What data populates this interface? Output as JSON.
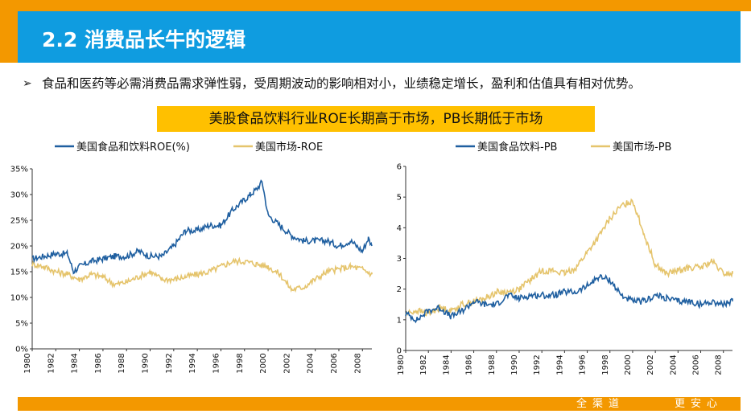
{
  "slide": {
    "title": "2.2 消费品长牛的逻辑",
    "bullet_arrow": "➢",
    "bullet_text": "食品和医药等必需消费品需求弹性弱，受周期波动的影响相对小，业绩稳定增长，盈利和估值具有相对优势。",
    "highlight": "美股食品饮料行业ROE长期高于市场，PB长期低于市场",
    "footer_left": "全渠道",
    "footer_right": "更安心"
  },
  "colors": {
    "series_a": "#1f5fa0",
    "series_b": "#e5c46c",
    "orange": "#f39800",
    "blue": "#0f9ce0"
  },
  "chart_data": [
    {
      "type": "line",
      "title": "",
      "xlabel": "",
      "ylabel": "",
      "x_ticks": [
        "1980",
        "1982",
        "1984",
        "1986",
        "1988",
        "1990",
        "1992",
        "1994",
        "1996",
        "1998",
        "2000",
        "2002",
        "2004",
        "2006",
        "2008"
      ],
      "y_ticks": [
        "35%",
        "30%",
        "25%",
        "20%",
        "15%",
        "10%",
        "5%",
        "0%"
      ],
      "xlim": [
        1980,
        2008.8
      ],
      "ylim": [
        0,
        35
      ],
      "legend_position": "top",
      "series": [
        {
          "name": "美国食品和饮料ROE(%)",
          "x": [
            1980,
            1981,
            1982,
            1983,
            1983.5,
            1984,
            1985,
            1986,
            1987,
            1988,
            1989,
            1990,
            1991,
            1992,
            1993,
            1994,
            1995,
            1996,
            1997,
            1998,
            1998.5,
            1999,
            1999.5,
            2000,
            2001,
            2002,
            2003,
            2004,
            2005,
            2006,
            2007,
            2008,
            2008.5,
            2008.8
          ],
          "y": [
            17.5,
            18,
            18.5,
            18.5,
            15,
            16,
            17,
            17.5,
            18,
            18,
            19,
            18,
            18,
            20,
            23,
            23,
            24,
            24,
            27,
            29,
            30,
            31,
            32.5,
            26,
            24,
            22,
            21,
            21,
            21,
            20,
            21,
            19,
            21.5,
            20
          ]
        },
        {
          "name": "美国市场-ROE",
          "x": [
            1980,
            1981,
            1982,
            1983,
            1984,
            1985,
            1986,
            1987,
            1988,
            1989,
            1990,
            1991,
            1992,
            1993,
            1994,
            1995,
            1996,
            1997,
            1998,
            1999,
            2000,
            2001,
            2002,
            2003,
            2004,
            2005,
            2006,
            2007,
            2008,
            2008.8
          ],
          "y": [
            16.5,
            16,
            15,
            14.5,
            13.5,
            14.5,
            14,
            12.5,
            13,
            14,
            15,
            13.5,
            13.5,
            14,
            14.5,
            15,
            16,
            17,
            17,
            16.5,
            16,
            14.5,
            11.5,
            12,
            13.5,
            15,
            15.5,
            16,
            15.5,
            14.5
          ]
        }
      ]
    },
    {
      "type": "line",
      "title": "",
      "xlabel": "",
      "ylabel": "",
      "x_ticks": [
        "1980",
        "1982",
        "1984",
        "1986",
        "1988",
        "1990",
        "1992",
        "1994",
        "1996",
        "1998",
        "2000",
        "2002",
        "2004",
        "2006",
        "2008"
      ],
      "y_ticks": [
        "6",
        "5",
        "4",
        "3",
        "2",
        "1",
        "0"
      ],
      "xlim": [
        1980,
        2008.8
      ],
      "ylim": [
        0,
        6
      ],
      "legend_position": "top",
      "series": [
        {
          "name": "美国食品饮料-PB",
          "x": [
            1980,
            1981,
            1982,
            1983,
            1984,
            1985,
            1986,
            1987,
            1988,
            1989,
            1990,
            1991,
            1992,
            1993,
            1994,
            1995,
            1996,
            1997,
            1998,
            1999,
            2000,
            2001,
            2002,
            2003,
            2004,
            2005,
            2006,
            2007,
            2008,
            2008.8
          ],
          "y": [
            1.2,
            1.0,
            1.3,
            1.4,
            1.1,
            1.3,
            1.6,
            1.5,
            1.5,
            1.8,
            1.7,
            1.8,
            1.8,
            1.8,
            1.9,
            1.9,
            2.1,
            2.4,
            2.3,
            1.8,
            1.6,
            1.6,
            1.8,
            1.7,
            1.6,
            1.6,
            1.5,
            1.6,
            1.5,
            1.6
          ]
        },
        {
          "name": "美国市场-PB",
          "x": [
            1980,
            1981,
            1982,
            1983,
            1984,
            1985,
            1986,
            1987,
            1988,
            1989,
            1990,
            1991,
            1992,
            1993,
            1994,
            1995,
            1996,
            1997,
            1998,
            1999,
            2000,
            2001,
            2002,
            2003,
            2004,
            2005,
            2006,
            2007,
            2008,
            2008.8
          ],
          "y": [
            1.2,
            1.3,
            1.2,
            1.4,
            1.3,
            1.5,
            1.6,
            1.7,
            1.9,
            1.9,
            2.0,
            2.3,
            2.6,
            2.6,
            2.5,
            2.7,
            3.2,
            3.7,
            4.3,
            4.7,
            4.9,
            3.8,
            2.8,
            2.5,
            2.6,
            2.7,
            2.7,
            2.9,
            2.5,
            2.5
          ]
        }
      ]
    }
  ]
}
